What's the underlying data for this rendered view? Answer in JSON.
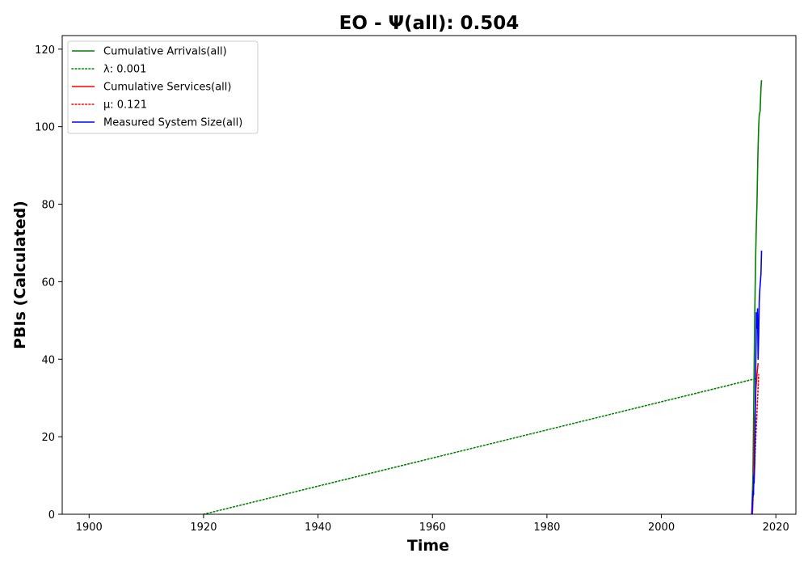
{
  "chart_data": {
    "type": "line",
    "title": "EO -  Ψ(all): 0.504",
    "xlabel": "Time",
    "ylabel": "PBIs (Calculated)",
    "xlim": [
      1895.3,
      2023.5
    ],
    "ylim": [
      0,
      123.5
    ],
    "xticks": [
      1900,
      1920,
      1940,
      1960,
      1980,
      2000,
      2020
    ],
    "yticks": [
      0,
      20,
      40,
      60,
      80,
      100,
      120
    ],
    "grid": false,
    "legend_position": "top-left",
    "series": [
      {
        "name": "Cumulative Arrivals(all)",
        "color": "#008000",
        "style": "solid",
        "x": [
          2015.8,
          2016.0,
          2016.15,
          2016.3,
          2016.45,
          2016.55,
          2016.7,
          2016.85,
          2017.0,
          2017.1,
          2017.25,
          2017.4,
          2017.5
        ],
        "y": [
          0,
          10,
          30,
          50,
          65,
          72,
          80,
          92,
          100,
          103,
          104,
          110,
          112
        ]
      },
      {
        "name": "λ: 0.001",
        "color": "#008000",
        "style": "dotted",
        "x": [
          1920.0,
          2016.5
        ],
        "y": [
          0,
          35
        ]
      },
      {
        "name": "Cumulative Services(all)",
        "color": "#ff0000",
        "style": "solid",
        "x": [
          2015.9,
          2016.1,
          2016.2,
          2016.35,
          2016.5,
          2016.7,
          2016.9
        ],
        "y": [
          0,
          8,
          15,
          25,
          32,
          36,
          39
        ]
      },
      {
        "name": "μ: 0.121",
        "color": "#ff0000",
        "style": "dotted",
        "x": [
          2015.9,
          2017.0
        ],
        "y": [
          0,
          36
        ]
      },
      {
        "name": "Measured System Size(all)",
        "color": "#0000ff",
        "style": "solid",
        "x": [
          2015.8,
          2015.9,
          2016.0,
          2016.1,
          2016.15,
          2016.2,
          2016.3,
          2016.35,
          2016.4,
          2016.45,
          2016.5,
          2016.55,
          2016.6,
          2016.7,
          2016.8,
          2016.9,
          2017.0,
          2017.1,
          2017.2,
          2017.3,
          2017.4,
          2017.5
        ],
        "y": [
          0,
          3,
          6,
          5,
          10,
          8,
          13,
          18,
          25,
          32,
          40,
          45,
          52,
          48,
          53,
          40,
          46,
          55,
          58,
          60,
          62,
          68
        ]
      }
    ],
    "legend": [
      {
        "label": "Cumulative Arrivals(all)",
        "color": "#008000",
        "style": "solid"
      },
      {
        "label": "λ: 0.001",
        "color": "#008000",
        "style": "dotted"
      },
      {
        "label": "Cumulative Services(all)",
        "color": "#ff0000",
        "style": "solid"
      },
      {
        "label": "μ: 0.121",
        "color": "#ff0000",
        "style": "dotted"
      },
      {
        "label": "Measured System Size(all)",
        "color": "#0000ff",
        "style": "solid"
      }
    ]
  }
}
